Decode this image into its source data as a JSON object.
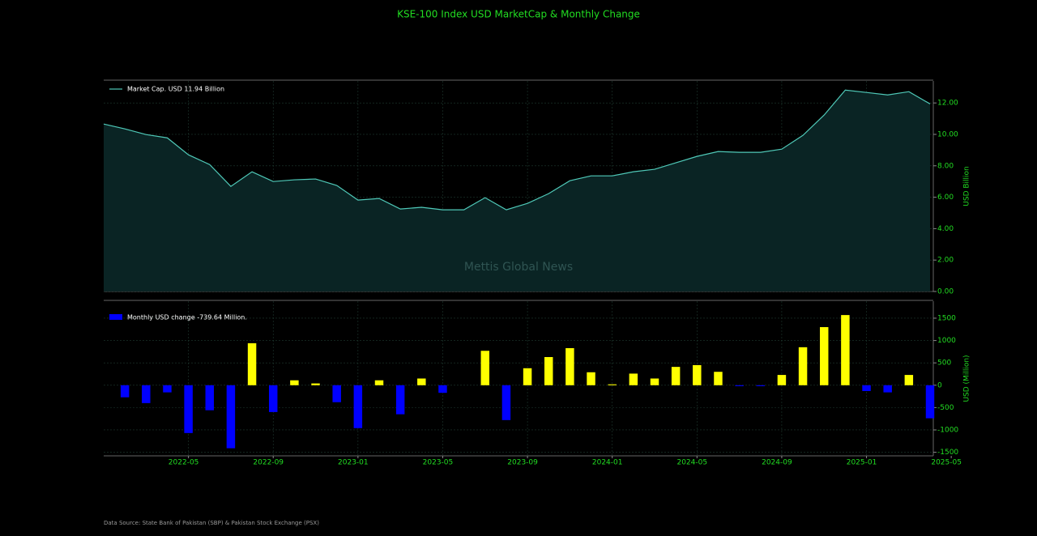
{
  "title": "KSE-100 Index USD MarketCap & Monthly Change",
  "source": "Data Source: State Bank of Pakistan (SBP) & Pakistan Stock Exchange (PSX)",
  "watermark": "Mettis Global News",
  "chart_data": [
    {
      "type": "line",
      "fill": true,
      "grid": true,
      "legend": "upper left",
      "ylabel": "USD Billion",
      "x": [
        "2022-01",
        "2022-02",
        "2022-03",
        "2022-04",
        "2022-05",
        "2022-06",
        "2022-07",
        "2022-08",
        "2022-09",
        "2022-10",
        "2022-11",
        "2022-12",
        "2023-01",
        "2023-02",
        "2023-03",
        "2023-04",
        "2023-05",
        "2023-06",
        "2023-07",
        "2023-08",
        "2023-09",
        "2023-10",
        "2023-11",
        "2023-12",
        "2024-01",
        "2024-02",
        "2024-03",
        "2024-04",
        "2024-05",
        "2024-06",
        "2024-07",
        "2024-08",
        "2024-09",
        "2024-10",
        "2024-11",
        "2024-12",
        "2025-01",
        "2025-02",
        "2025-03",
        "2025-04"
      ],
      "xlim": [
        "2022-01",
        "2025-04"
      ],
      "xticks": [
        "2022-05",
        "2022-09",
        "2023-01",
        "2023-05",
        "2023-09",
        "2024-01",
        "2024-05",
        "2024-09",
        "2025-01",
        "2025-05"
      ],
      "ylim": [
        0,
        13.4
      ],
      "yticks": [
        {
          "value": 0,
          "label": "0.00"
        },
        {
          "value": 2,
          "label": "2.00"
        },
        {
          "value": 4,
          "label": "4.00"
        },
        {
          "value": 6,
          "label": "6.00"
        },
        {
          "value": 8,
          "label": "8.00"
        },
        {
          "value": 10,
          "label": "10.00"
        },
        {
          "value": 12,
          "label": "12.00"
        }
      ],
      "series": [
        {
          "name": "Market Cap. USD 11.94 Billion",
          "color": "#4fc9b8",
          "fill_color": "#0a2424",
          "values": [
            10.66,
            10.35,
            9.99,
            9.78,
            8.7,
            8.08,
            6.69,
            7.62,
            7.0,
            7.11,
            7.16,
            6.75,
            5.82,
            5.92,
            5.25,
            5.36,
            5.2,
            5.2,
            5.97,
            5.2,
            5.61,
            6.23,
            7.05,
            7.36,
            7.36,
            7.62,
            7.78,
            8.19,
            8.6,
            8.91,
            8.86,
            8.86,
            9.06,
            9.94,
            11.23,
            12.82,
            12.67,
            12.51,
            12.72,
            11.94
          ]
        }
      ]
    },
    {
      "type": "bar",
      "grid": true,
      "legend": "upper left",
      "ylabel": "USD (Million)",
      "x": [
        "2022-01",
        "2022-02",
        "2022-03",
        "2022-04",
        "2022-05",
        "2022-06",
        "2022-07",
        "2022-08",
        "2022-09",
        "2022-10",
        "2022-11",
        "2022-12",
        "2023-01",
        "2023-02",
        "2023-03",
        "2023-04",
        "2023-05",
        "2023-06",
        "2023-07",
        "2023-08",
        "2023-09",
        "2023-10",
        "2023-11",
        "2023-12",
        "2024-01",
        "2024-02",
        "2024-03",
        "2024-04",
        "2024-05",
        "2024-06",
        "2024-07",
        "2024-08",
        "2024-09",
        "2024-10",
        "2024-11",
        "2024-12",
        "2025-01",
        "2025-02",
        "2025-03",
        "2025-04"
      ],
      "xlim": [
        "2022-01",
        "2025-04"
      ],
      "xticks": [
        "2022-05",
        "2022-09",
        "2023-01",
        "2023-05",
        "2023-09",
        "2024-01",
        "2024-05",
        "2024-09",
        "2025-01",
        "2025-05"
      ],
      "ylim": [
        -1580,
        1880
      ],
      "yticks": [
        -1500,
        -1000,
        -500,
        0,
        500,
        1000,
        1500
      ],
      "series": [
        {
          "name": "Monthly USD change -739.64 Million.",
          "color": "#0000ff",
          "positive_color": "#ffff00",
          "negative_color": "#0000ff",
          "values": [
            null,
            -270,
            -400,
            -160,
            -1070,
            -560,
            -1410,
            940,
            -600,
            110,
            40,
            -380,
            -960,
            110,
            -650,
            150,
            -170,
            0,
            770,
            -780,
            380,
            630,
            830,
            290,
            20,
            260,
            150,
            410,
            450,
            300,
            -20,
            -20,
            230,
            850,
            1300,
            1570,
            -130,
            -160,
            230,
            -739.64
          ]
        }
      ]
    }
  ]
}
